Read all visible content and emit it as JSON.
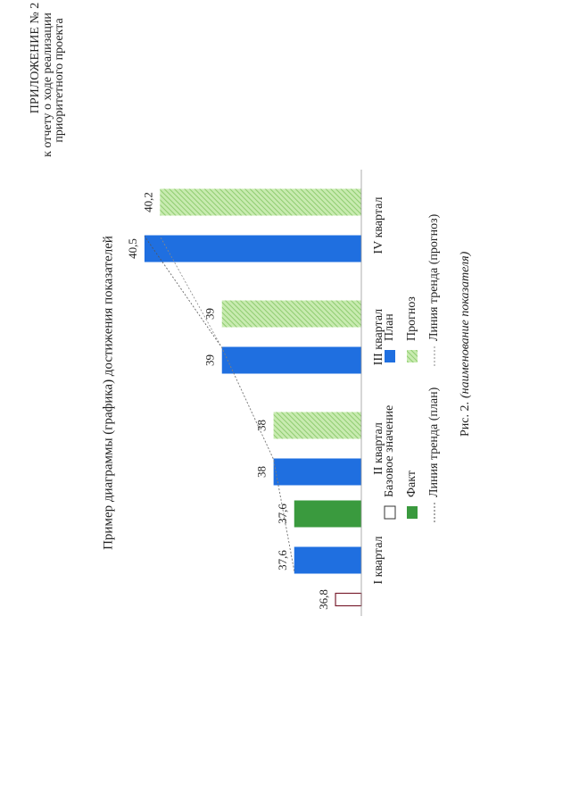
{
  "header": {
    "title": "ПРИЛОЖЕНИЕ № 2",
    "lines": [
      "к отчету о ходе реализации",
      "приоритетного проекта"
    ]
  },
  "chart_data": {
    "type": "bar",
    "title": "Пример диаграммы (графика) достижения показателей",
    "categories": [
      "I квартал",
      "II квартал",
      "III квартал",
      "IV квартал"
    ],
    "ylim": [
      36.3,
      41
    ],
    "series": [
      {
        "name": "Базовое значение",
        "kind": "outline",
        "color": "#7a2030",
        "values": [
          36.8,
          null,
          null,
          null
        ],
        "value_labels": [
          "36,8",
          null,
          null,
          null
        ]
      },
      {
        "name": "План",
        "kind": "bar",
        "color": "#1f6fe0",
        "values": [
          37.6,
          38,
          39,
          40.5
        ],
        "value_labels": [
          "37,6",
          "38",
          "39",
          "40,5"
        ]
      },
      {
        "name": "Факт",
        "kind": "bar",
        "color": "#3a9a3e",
        "values": [
          37.6,
          null,
          null,
          null
        ],
        "value_labels": [
          "37,6",
          null,
          null,
          null
        ]
      },
      {
        "name": "Прогноз",
        "kind": "hatched",
        "color": "#a6d98a",
        "values": [
          null,
          38,
          39,
          40.2
        ],
        "value_labels": [
          null,
          "38",
          "39",
          "40,2"
        ]
      },
      {
        "name": "Линия тренда (план)",
        "kind": "line",
        "color": "#555555",
        "values": [
          37.6,
          38,
          39,
          40.5
        ]
      },
      {
        "name": "Линия тренда (прогноз)",
        "kind": "line",
        "color": "#888888",
        "values": [
          37.6,
          38,
          39,
          40.2
        ]
      }
    ]
  },
  "caption": {
    "label": "Рис. 2.",
    "text": "(наименование показателя)"
  }
}
